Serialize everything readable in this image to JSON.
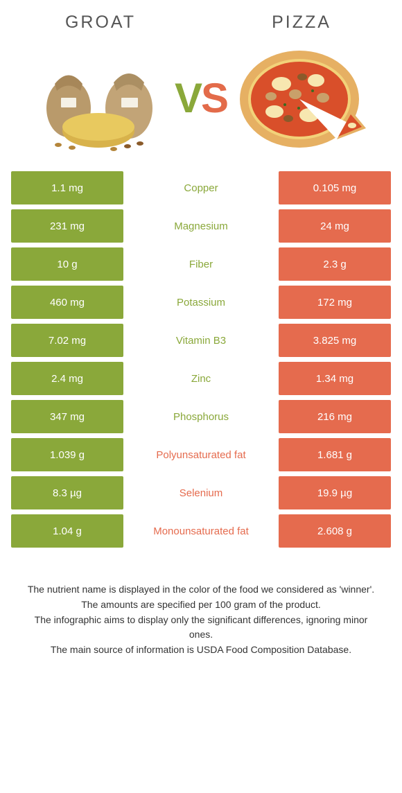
{
  "colors": {
    "left": "#8aa83a",
    "right": "#e56b4e",
    "background": "#ffffff",
    "text": "#333333"
  },
  "header": {
    "left_title": "GROAT",
    "right_title": "PIZZA",
    "vs_v": "V",
    "vs_s": "S"
  },
  "rows": [
    {
      "left": "1.1 mg",
      "label": "Copper",
      "right": "0.105 mg",
      "winner": "left"
    },
    {
      "left": "231 mg",
      "label": "Magnesium",
      "right": "24 mg",
      "winner": "left"
    },
    {
      "left": "10 g",
      "label": "Fiber",
      "right": "2.3 g",
      "winner": "left"
    },
    {
      "left": "460 mg",
      "label": "Potassium",
      "right": "172 mg",
      "winner": "left"
    },
    {
      "left": "7.02 mg",
      "label": "Vitamin B3",
      "right": "3.825 mg",
      "winner": "left"
    },
    {
      "left": "2.4 mg",
      "label": "Zinc",
      "right": "1.34 mg",
      "winner": "left"
    },
    {
      "left": "347 mg",
      "label": "Phosphorus",
      "right": "216 mg",
      "winner": "left"
    },
    {
      "left": "1.039 g",
      "label": "Polyunsaturated fat",
      "right": "1.681 g",
      "winner": "right"
    },
    {
      "left": "8.3 µg",
      "label": "Selenium",
      "right": "19.9 µg",
      "winner": "right"
    },
    {
      "left": "1.04 g",
      "label": "Monounsaturated fat",
      "right": "2.608 g",
      "winner": "right"
    }
  ],
  "footnotes": [
    "The nutrient name is displayed in the color of the food we considered as 'winner'.",
    "The amounts are specified per 100 gram of the product.",
    "The infographic aims to display only the significant differences, ignoring minor ones.",
    "The main source of information is USDA Food Composition Database."
  ]
}
